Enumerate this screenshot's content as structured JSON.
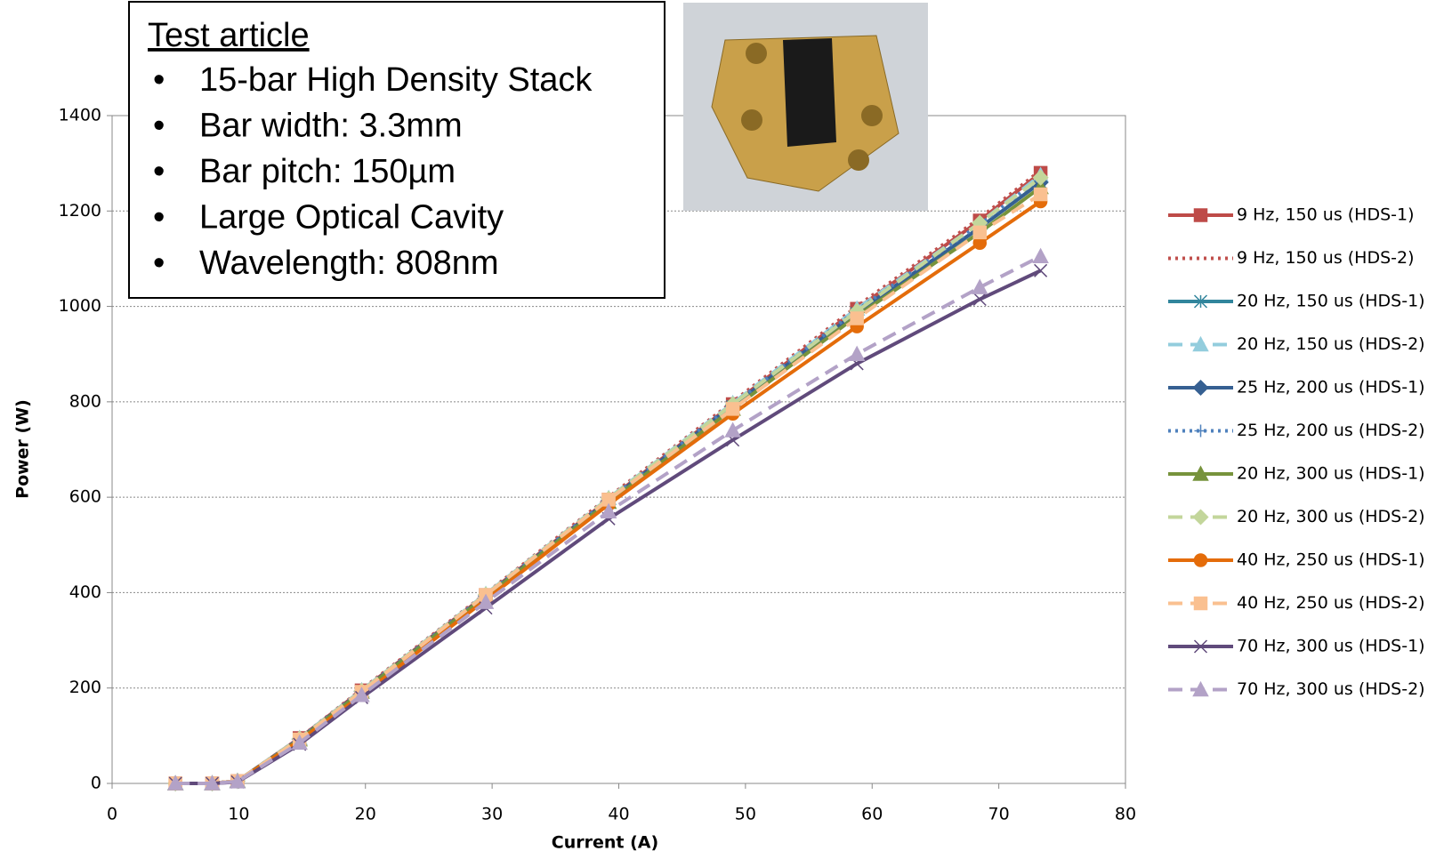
{
  "chart_data": {
    "type": "line",
    "xlabel": "Current (A)",
    "ylabel": "Power (W)",
    "xlim": [
      0,
      80
    ],
    "xticks": [
      0,
      10,
      20,
      30,
      40,
      50,
      60,
      70,
      80
    ],
    "ylim": [
      0,
      1400
    ],
    "yticks": [
      0,
      200,
      400,
      600,
      800,
      1000,
      1200,
      1400
    ],
    "grid": true,
    "legend": "right",
    "x": [
      5,
      7.9,
      9.9,
      14.8,
      19.7,
      29.5,
      39.2,
      49,
      58.8,
      68.5,
      73.3
    ],
    "annotation": {
      "title": "Test article",
      "items": [
        "15-bar High Density Stack",
        "Bar width:  3.3mm",
        "Bar pitch:  150µm",
        "Large Optical Cavity",
        "Wavelength: 808nm"
      ]
    },
    "series": [
      {
        "name": "9 Hz, 150 us (HDS-1)",
        "color": "#be4b48",
        "marker": "square",
        "dash": "solid",
        "values": [
          0,
          0,
          5,
          95,
          195,
          395,
          595,
          795,
          995,
          1180,
          1280
        ]
      },
      {
        "name": "9 Hz, 150 us (HDS-2)",
        "color": "#c0504d",
        "marker": "none",
        "dash": "dotted",
        "values": [
          0,
          0,
          5,
          95,
          197,
          398,
          600,
          800,
          1000,
          1185,
          1285
        ]
      },
      {
        "name": "20 Hz, 150 us (HDS-1)",
        "color": "#31859c",
        "marker": "asterisk",
        "dash": "solid",
        "values": [
          0,
          0,
          5,
          93,
          193,
          393,
          592,
          790,
          985,
          1165,
          1260
        ]
      },
      {
        "name": "20 Hz, 150 us (HDS-2)",
        "color": "#93cddd",
        "marker": "triangle",
        "dash": "dashed",
        "values": [
          0,
          0,
          5,
          95,
          195,
          397,
          598,
          797,
          995,
          1175,
          1275
        ]
      },
      {
        "name": "25 Hz, 200 us (HDS-1)",
        "color": "#366092",
        "marker": "diamond",
        "dash": "solid",
        "values": [
          0,
          0,
          5,
          93,
          193,
          393,
          593,
          792,
          988,
          1165,
          1260
        ]
      },
      {
        "name": "25 Hz, 200 us (HDS-2)",
        "color": "#4f81bd",
        "marker": "plus",
        "dash": "dotted",
        "values": [
          0,
          0,
          5,
          94,
          194,
          395,
          595,
          795,
          992,
          1172,
          1270
        ]
      },
      {
        "name": "20 Hz, 300 us (HDS-1)",
        "color": "#77933c",
        "marker": "triangle",
        "dash": "solid",
        "values": [
          0,
          0,
          5,
          92,
          192,
          392,
          590,
          785,
          980,
          1155,
          1250
        ]
      },
      {
        "name": "20 Hz, 300 us (HDS-2)",
        "color": "#c3d69b",
        "marker": "diamond",
        "dash": "dashed",
        "values": [
          0,
          0,
          5,
          94,
          194,
          396,
          597,
          795,
          990,
          1175,
          1270
        ]
      },
      {
        "name": "40 Hz, 250 us (HDS-1)",
        "color": "#e46c0a",
        "marker": "circle",
        "dash": "solid",
        "values": [
          0,
          0,
          5,
          90,
          185,
          385,
          585,
          775,
          958,
          1133,
          1220
        ]
      },
      {
        "name": "40 Hz, 250 us (HDS-2)",
        "color": "#fac090",
        "marker": "square",
        "dash": "dashed",
        "values": [
          0,
          0,
          5,
          92,
          192,
          395,
          595,
          785,
          975,
          1155,
          1235
        ]
      },
      {
        "name": "70 Hz, 300 us (HDS-1)",
        "color": "#604a7b",
        "marker": "x",
        "dash": "solid",
        "values": [
          0,
          0,
          3,
          82,
          180,
          368,
          555,
          720,
          880,
          1015,
          1075
        ]
      },
      {
        "name": "70 Hz, 300 us (HDS-2)",
        "color": "#b3a2c7",
        "marker": "triangle",
        "dash": "dashed",
        "values": [
          0,
          0,
          4,
          85,
          185,
          380,
          570,
          740,
          900,
          1040,
          1105
        ]
      }
    ]
  }
}
